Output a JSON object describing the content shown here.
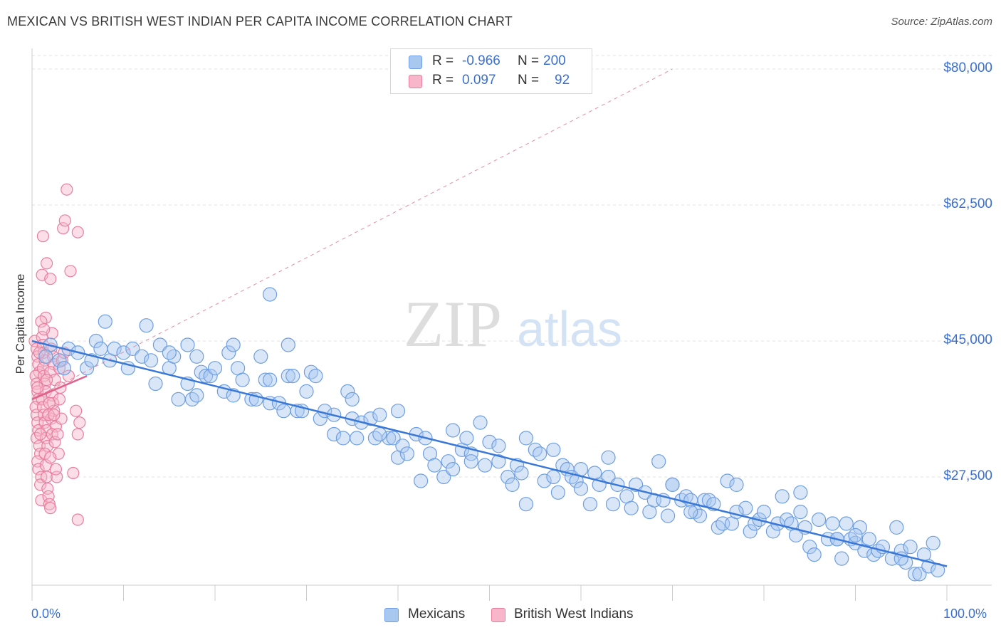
{
  "title": "MEXICAN VS BRITISH WEST INDIAN PER CAPITA INCOME CORRELATION CHART",
  "source": "Source: ZipAtlas.com",
  "watermark": {
    "zip": "ZIP",
    "atlas": "atlas"
  },
  "legend": {
    "rows": [
      {
        "r_label": "R =",
        "r_value": "-0.966",
        "n_label": "N =",
        "n_value": "200",
        "color": "#a9c8f0",
        "border": "#6f9fe0"
      },
      {
        "r_label": "R =",
        "r_value": "0.097",
        "n_label": "N =",
        "n_value": "92",
        "color": "#f7b6ca",
        "border": "#e87ea0"
      }
    ]
  },
  "bottom_legend": [
    {
      "label": "Mexicans",
      "color": "#a9c8f0",
      "border": "#6f9fe0"
    },
    {
      "label": "British West Indians",
      "color": "#f7b6ca",
      "border": "#e87ea0"
    }
  ],
  "chart_data": {
    "type": "scatter",
    "title": "MEXICAN VS BRITISH WEST INDIAN PER CAPITA INCOME CORRELATION CHART",
    "xlabel": "",
    "ylabel": "Per Capita Income",
    "xlim": [
      0,
      100
    ],
    "ylim": [
      11000,
      82000
    ],
    "x_tick_labels": [
      "0.0%",
      "100.0%"
    ],
    "y_ticks": [
      27500,
      45000,
      62500,
      80000
    ],
    "y_tick_labels": [
      "$27,500",
      "$45,000",
      "$62,500",
      "$80,000"
    ],
    "grid": true,
    "series": [
      {
        "name": "Mexicans",
        "color": "#6f9fe0",
        "fill": "#a9c8f0",
        "trend": {
          "x": [
            0,
            100
          ],
          "y": [
            45000,
            16000
          ],
          "style": "solid"
        },
        "points": [
          [
            2,
            44500
          ],
          [
            3,
            42500
          ],
          [
            4,
            44000
          ],
          [
            5,
            43500
          ],
          [
            6,
            41500
          ],
          [
            7,
            45000
          ],
          [
            7.5,
            44000
          ],
          [
            8,
            47500
          ],
          [
            8.5,
            42500
          ],
          [
            9,
            44000
          ],
          [
            10,
            43500
          ],
          [
            10.5,
            41500
          ],
          [
            11,
            44000
          ],
          [
            12,
            43000
          ],
          [
            12.5,
            47000
          ],
          [
            13,
            42500
          ],
          [
            13.5,
            39500
          ],
          [
            14,
            44500
          ],
          [
            15,
            41500
          ],
          [
            15.5,
            43000
          ],
          [
            16,
            37500
          ],
          [
            17,
            39500
          ],
          [
            17.5,
            37500
          ],
          [
            17,
            44500
          ],
          [
            18,
            43000
          ],
          [
            18.5,
            41000
          ],
          [
            19,
            40500
          ],
          [
            19.5,
            40500
          ],
          [
            20,
            41500
          ],
          [
            21,
            38500
          ],
          [
            21.5,
            43500
          ],
          [
            22,
            38000
          ],
          [
            22.5,
            41500
          ],
          [
            23,
            40000
          ],
          [
            24,
            37500
          ],
          [
            24.5,
            37500
          ],
          [
            25,
            43000
          ],
          [
            25.5,
            40000
          ],
          [
            26,
            37000
          ],
          [
            26,
            51000
          ],
          [
            27,
            37000
          ],
          [
            27.5,
            36000
          ],
          [
            28,
            40500
          ],
          [
            28.5,
            40500
          ],
          [
            29,
            36000
          ],
          [
            29.5,
            36000
          ],
          [
            30,
            38500
          ],
          [
            30.5,
            41000
          ],
          [
            31,
            40500
          ],
          [
            31.5,
            35000
          ],
          [
            32,
            36000
          ],
          [
            33,
            35500
          ],
          [
            33,
            33000
          ],
          [
            34,
            32500
          ],
          [
            34.5,
            38500
          ],
          [
            35,
            35000
          ],
          [
            35.5,
            32500
          ],
          [
            36,
            34500
          ],
          [
            37,
            35000
          ],
          [
            37.5,
            32500
          ],
          [
            38,
            35500
          ],
          [
            39,
            32500
          ],
          [
            39.5,
            32500
          ],
          [
            40,
            30000
          ],
          [
            40.5,
            31500
          ],
          [
            41,
            30500
          ],
          [
            42,
            33000
          ],
          [
            42.5,
            27000
          ],
          [
            43,
            32500
          ],
          [
            43.5,
            30500
          ],
          [
            44,
            29000
          ],
          [
            45,
            27500
          ],
          [
            45.5,
            29500
          ],
          [
            46,
            33500
          ],
          [
            47,
            31000
          ],
          [
            47.5,
            32500
          ],
          [
            48,
            30500
          ],
          [
            49,
            34500
          ],
          [
            49.5,
            29000
          ],
          [
            50,
            32000
          ],
          [
            51,
            29500
          ],
          [
            52,
            27500
          ],
          [
            52.5,
            26500
          ],
          [
            53,
            29000
          ],
          [
            53.5,
            28000
          ],
          [
            54,
            32500
          ],
          [
            54,
            24000
          ],
          [
            55,
            31000
          ],
          [
            55.5,
            30500
          ],
          [
            56,
            27000
          ],
          [
            57,
            31000
          ],
          [
            57.5,
            25500
          ],
          [
            58,
            29000
          ],
          [
            58.5,
            28500
          ],
          [
            59,
            27500
          ],
          [
            59.5,
            27000
          ],
          [
            60,
            26000
          ],
          [
            61,
            24000
          ],
          [
            61.5,
            28000
          ],
          [
            62,
            26500
          ],
          [
            63,
            27500
          ],
          [
            63.5,
            24000
          ],
          [
            64,
            26500
          ],
          [
            65,
            25000
          ],
          [
            65.5,
            23500
          ],
          [
            66,
            26500
          ],
          [
            67,
            25500
          ],
          [
            67.5,
            23000
          ],
          [
            68,
            24500
          ],
          [
            68.5,
            29500
          ],
          [
            69,
            24500
          ],
          [
            69.5,
            22500
          ],
          [
            70,
            26500
          ],
          [
            71,
            24500
          ],
          [
            71.5,
            25000
          ],
          [
            72,
            24500
          ],
          [
            72.5,
            23000
          ],
          [
            73,
            22500
          ],
          [
            73.5,
            24500
          ],
          [
            74,
            24500
          ],
          [
            74.5,
            24000
          ],
          [
            75,
            21000
          ],
          [
            75.5,
            21500
          ],
          [
            76,
            27000
          ],
          [
            76.5,
            21500
          ],
          [
            77,
            26500
          ],
          [
            78,
            23500
          ],
          [
            78.5,
            20500
          ],
          [
            79,
            21500
          ],
          [
            79.5,
            22000
          ],
          [
            80,
            23000
          ],
          [
            81,
            20500
          ],
          [
            81.5,
            21500
          ],
          [
            82,
            25000
          ],
          [
            82.5,
            22000
          ],
          [
            83,
            21500
          ],
          [
            83.5,
            20000
          ],
          [
            84,
            25500
          ],
          [
            84.5,
            21000
          ],
          [
            85,
            18500
          ],
          [
            85.5,
            17500
          ],
          [
            86,
            22000
          ],
          [
            87,
            19500
          ],
          [
            87.5,
            21500
          ],
          [
            88,
            19500
          ],
          [
            88.5,
            17000
          ],
          [
            89,
            21500
          ],
          [
            89.5,
            19500
          ],
          [
            90,
            19000
          ],
          [
            90.5,
            21000
          ],
          [
            91,
            18000
          ],
          [
            91.5,
            19500
          ],
          [
            92,
            17500
          ],
          [
            92.5,
            18000
          ],
          [
            93,
            18500
          ],
          [
            94,
            17000
          ],
          [
            94.5,
            21000
          ],
          [
            95,
            18000
          ],
          [
            95.5,
            16500
          ],
          [
            96,
            18500
          ],
          [
            96.5,
            15000
          ],
          [
            97,
            15000
          ],
          [
            97.5,
            17500
          ],
          [
            98,
            16000
          ],
          [
            98.5,
            19000
          ],
          [
            99,
            15500
          ],
          [
            1.5,
            43000
          ],
          [
            3.5,
            41500
          ],
          [
            6.5,
            42500
          ],
          [
            15,
            43500
          ],
          [
            22,
            44500
          ],
          [
            28,
            44500
          ],
          [
            35,
            37500
          ],
          [
            40,
            36000
          ],
          [
            46,
            28500
          ],
          [
            51,
            31500
          ],
          [
            57,
            27500
          ],
          [
            63,
            30000
          ],
          [
            70,
            26500
          ],
          [
            77,
            23000
          ],
          [
            84,
            23000
          ],
          [
            90,
            20000
          ],
          [
            95,
            17000
          ],
          [
            18,
            38000
          ],
          [
            26,
            40000
          ],
          [
            38,
            33000
          ],
          [
            48,
            29500
          ],
          [
            60,
            28500
          ],
          [
            72,
            23000
          ],
          [
            88,
            19500
          ]
        ]
      },
      {
        "name": "British West Indians",
        "color": "#e87ea0",
        "fill": "#f7b6ca",
        "trend": {
          "x": [
            0,
            6
          ],
          "y": [
            37500,
            40500
          ],
          "style": "solid",
          "extended": {
            "x": [
              0,
              70
            ],
            "y": [
              37500,
              80000
            ],
            "style": "dashed"
          }
        },
        "points": [
          [
            0.3,
            45000
          ],
          [
            0.5,
            44000
          ],
          [
            0.6,
            43000
          ],
          [
            0.7,
            42000
          ],
          [
            0.8,
            41000
          ],
          [
            0.4,
            40500
          ],
          [
            0.5,
            39500
          ],
          [
            0.6,
            38500
          ],
          [
            0.7,
            37500
          ],
          [
            0.4,
            36500
          ],
          [
            0.5,
            35500
          ],
          [
            0.6,
            34500
          ],
          [
            0.7,
            33500
          ],
          [
            0.5,
            32500
          ],
          [
            0.8,
            31500
          ],
          [
            0.9,
            30500
          ],
          [
            0.6,
            29500
          ],
          [
            0.7,
            28500
          ],
          [
            1.0,
            27500
          ],
          [
            0.9,
            26500
          ],
          [
            1.0,
            24500
          ],
          [
            1.1,
            45500
          ],
          [
            1.2,
            44500
          ],
          [
            1.3,
            43500
          ],
          [
            1.4,
            42500
          ],
          [
            1.2,
            41500
          ],
          [
            1.3,
            40500
          ],
          [
            1.4,
            39500
          ],
          [
            1.5,
            38500
          ],
          [
            1.1,
            37500
          ],
          [
            1.2,
            36500
          ],
          [
            1.3,
            35500
          ],
          [
            1.4,
            34500
          ],
          [
            1.6,
            33500
          ],
          [
            1.5,
            32500
          ],
          [
            1.7,
            31500
          ],
          [
            1.4,
            30500
          ],
          [
            1.5,
            29000
          ],
          [
            1.6,
            27500
          ],
          [
            1.7,
            26000
          ],
          [
            1.8,
            25000
          ],
          [
            1.9,
            24000
          ],
          [
            2.0,
            23500
          ],
          [
            1.2,
            58500
          ],
          [
            1.6,
            55000
          ],
          [
            1.1,
            53500
          ],
          [
            2.0,
            53000
          ],
          [
            1.5,
            48000
          ],
          [
            1.0,
            47500
          ],
          [
            2.2,
            46000
          ],
          [
            2.1,
            44000
          ],
          [
            2.3,
            43000
          ],
          [
            2.4,
            42000
          ],
          [
            2.0,
            41000
          ],
          [
            2.5,
            40000
          ],
          [
            2.2,
            38000
          ],
          [
            2.3,
            37000
          ],
          [
            2.4,
            36000
          ],
          [
            2.1,
            35000
          ],
          [
            2.6,
            34000
          ],
          [
            2.2,
            33000
          ],
          [
            2.5,
            32000
          ],
          [
            2.8,
            33000
          ],
          [
            3.0,
            37500
          ],
          [
            3.2,
            35000
          ],
          [
            3.4,
            59500
          ],
          [
            3.6,
            60500
          ],
          [
            3.8,
            64500
          ],
          [
            4.2,
            54000
          ],
          [
            5.0,
            59000
          ],
          [
            4.8,
            36000
          ],
          [
            5.2,
            34500
          ],
          [
            5.0,
            33000
          ],
          [
            4.5,
            28000
          ],
          [
            5.0,
            22000
          ],
          [
            3.0,
            41500
          ],
          [
            3.3,
            42500
          ],
          [
            2.7,
            27500
          ],
          [
            1.8,
            35500
          ],
          [
            0.9,
            33000
          ],
          [
            2.9,
            30500
          ],
          [
            2.6,
            28500
          ],
          [
            3.1,
            39000
          ],
          [
            2.0,
            30000
          ],
          [
            1.3,
            46500
          ],
          [
            0.8,
            43500
          ],
          [
            2.4,
            35500
          ],
          [
            1.9,
            37000
          ],
          [
            3.5,
            43500
          ],
          [
            4.0,
            40500
          ],
          [
            0.6,
            39000
          ],
          [
            1.6,
            40000
          ]
        ]
      }
    ]
  }
}
